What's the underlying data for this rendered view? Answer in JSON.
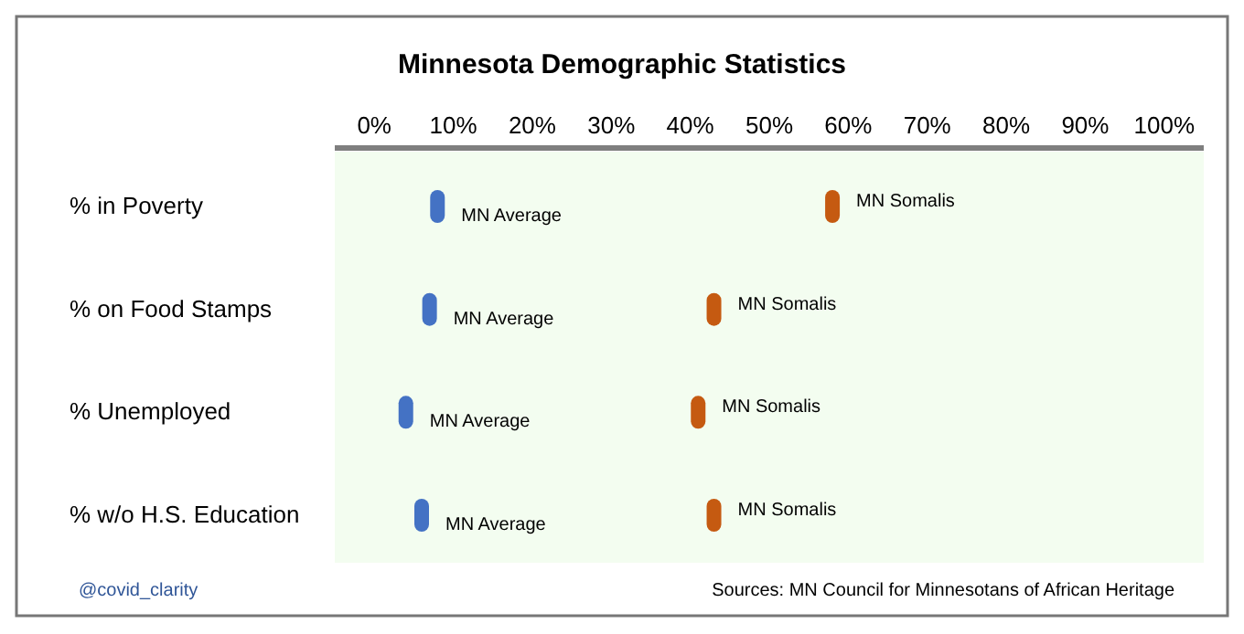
{
  "chart_data": {
    "type": "scatter",
    "title": "Minnesota Demographic Statistics",
    "orientation": "horizontal",
    "categories": [
      "% in Poverty",
      "% on Food Stamps",
      "% Unemployed",
      "% w/o H.S. Education"
    ],
    "series": [
      {
        "name": "MN Average",
        "color": "#4472c4",
        "values": [
          8,
          7,
          4,
          6
        ]
      },
      {
        "name": "MN Somalis",
        "color": "#c55a11",
        "values": [
          58,
          43,
          41,
          43
        ]
      }
    ],
    "xlim": [
      -5,
      105
    ],
    "xticks": [
      {
        "value": 0,
        "label": "0%"
      },
      {
        "value": 10,
        "label": "10%"
      },
      {
        "value": 20,
        "label": "20%"
      },
      {
        "value": 30,
        "label": "30%"
      },
      {
        "value": 40,
        "label": "40%"
      },
      {
        "value": 50,
        "label": "50%"
      },
      {
        "value": 60,
        "label": "60%"
      },
      {
        "value": 70,
        "label": "70%"
      },
      {
        "value": 80,
        "label": "80%"
      },
      {
        "value": 90,
        "label": "90%"
      },
      {
        "value": 100,
        "label": "100%"
      }
    ],
    "grid": false,
    "legend": false,
    "annotations": [
      "@covid_clarity",
      "Sources: MN Council for Minnesotans of African Heritage"
    ]
  }
}
